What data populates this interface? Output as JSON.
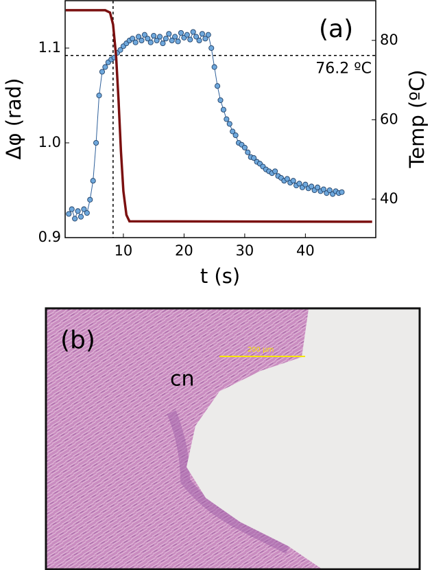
{
  "chart_data": {
    "type": "scatter",
    "label": "(a)",
    "xlabel": "t (s)",
    "ylabel": "Δφ (rad)",
    "y2label": "Temp (ºC)",
    "xlim": [
      0.4,
      51.6
    ],
    "ylim": [
      0.9,
      1.15
    ],
    "y2lim": [
      30.3,
      90
    ],
    "xticks": [
      10,
      20,
      30,
      40
    ],
    "yticks": [
      0.9,
      {
        "value": 1,
        "label": "1.0"
      },
      1.1
    ],
    "y2ticks": [
      40,
      60,
      80
    ],
    "series": [
      {
        "name": "Δφ",
        "type": "scatter",
        "color": "#6fa8dc",
        "x": [
          1,
          1.5,
          2,
          2.5,
          3,
          3.5,
          4,
          4.5,
          5,
          5.5,
          6,
          6.5,
          7,
          7.5,
          8,
          8.5,
          9,
          9.5,
          10,
          10.5,
          11,
          11.5,
          12,
          12.5,
          13,
          13.5,
          14,
          14.5,
          15,
          15.5,
          16,
          16.5,
          17,
          17.5,
          18,
          18.5,
          19,
          19.5,
          20,
          20.5,
          21,
          21.5,
          22,
          22.5,
          23,
          23.5,
          24,
          24.5,
          25,
          25.5,
          26,
          26.5,
          27,
          27.5,
          28,
          28.5,
          29,
          29.5,
          30,
          30.5,
          31,
          31.5,
          32,
          32.5,
          33,
          33.5,
          34,
          34.5,
          35,
          35.5,
          36,
          36.5,
          37,
          37.5,
          38,
          38.5,
          39,
          39.5,
          40,
          40.5,
          41,
          41.5,
          42,
          42.5,
          43,
          43.5,
          44,
          44.5,
          45,
          45.5,
          46
        ],
        "values": [
          0.925,
          0.93,
          0.92,
          0.928,
          0.922,
          0.93,
          0.926,
          0.94,
          0.96,
          1.0,
          1.05,
          1.075,
          1.08,
          1.085,
          1.088,
          1.09,
          1.095,
          1.098,
          1.102,
          1.105,
          1.108,
          1.11,
          1.106,
          1.112,
          1.108,
          1.114,
          1.11,
          1.106,
          1.113,
          1.108,
          1.112,
          1.105,
          1.11,
          1.115,
          1.108,
          1.112,
          1.107,
          1.116,
          1.111,
          1.114,
          1.109,
          1.117,
          1.112,
          1.108,
          1.115,
          1.11,
          1.114,
          1.1,
          1.08,
          1.06,
          1.045,
          1.035,
          1.025,
          1.02,
          1.012,
          1.008,
          1.0,
          0.998,
          0.995,
          0.99,
          0.985,
          0.984,
          0.98,
          0.978,
          0.975,
          0.972,
          0.97,
          0.968,
          0.97,
          0.965,
          0.963,
          0.96,
          0.962,
          0.958,
          0.96,
          0.955,
          0.957,
          0.953,
          0.956,
          0.952,
          0.954,
          0.95,
          0.953,
          0.949,
          0.951,
          0.947,
          0.95,
          0.946,
          0.949,
          0.947,
          0.948
        ]
      },
      {
        "name": "Temp",
        "type": "line",
        "axis": "y2",
        "color": "#7b1010",
        "x": [
          0.5,
          7,
          7.8,
          8.3,
          8.8,
          9.2,
          9.6,
          10,
          10.5,
          11,
          51
        ],
        "values": [
          87.6,
          87.6,
          87,
          84,
          76,
          65,
          52,
          42,
          36,
          34.4,
          34.3
        ]
      }
    ],
    "hline": {
      "axis": "y2",
      "value": 76.2,
      "label": "76.2 ºC"
    },
    "vline": 8.3
  },
  "panel_b": {
    "label": "(b)",
    "annotation": "cn",
    "scale_bar": "200 µm"
  }
}
